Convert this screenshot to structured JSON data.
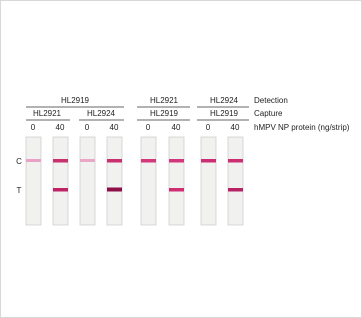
{
  "header": {
    "rows": [
      {
        "groups": [
          "HL2919",
          "HL2921",
          "HL2924"
        ],
        "label": "Detection"
      },
      {
        "groups": [
          "HL2921",
          "HL2924",
          "HL2919",
          "HL2919"
        ],
        "label": "Capture"
      },
      {
        "groups": [
          "0",
          "40",
          "0",
          "40",
          "0",
          "40",
          "0",
          "40"
        ],
        "label": "hMPV NP protein (ng/strip)"
      }
    ]
  },
  "strip_lines": {
    "control": "C",
    "test": "T"
  }
}
